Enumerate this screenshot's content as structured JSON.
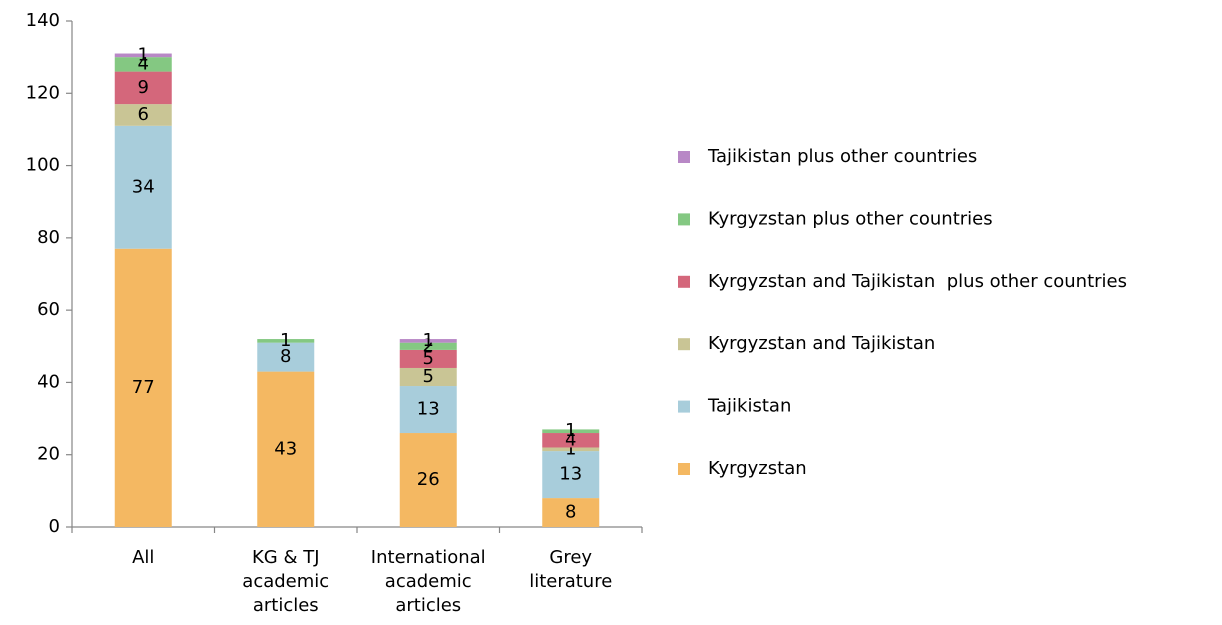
{
  "chart_data": {
    "type": "stacked_bar",
    "categories": [
      [
        "All"
      ],
      [
        "KG & TJ",
        "academic",
        "articles"
      ],
      [
        "International",
        "academic",
        "articles"
      ],
      [
        "Grey",
        "literature"
      ]
    ],
    "series": [
      {
        "name": "Kyrgyzstan",
        "color": "#f4b862",
        "values": [
          77,
          43,
          26,
          8
        ]
      },
      {
        "name": "Tajikistan",
        "color": "#a8cddb",
        "values": [
          34,
          8,
          13,
          13
        ]
      },
      {
        "name": "Kyrgyzstan and Tajikistan",
        "color": "#c9c595",
        "values": [
          6,
          0,
          5,
          1
        ]
      },
      {
        "name": "Kyrgyzstan and Tajikistan  plus other countries",
        "color": "#d4677b",
        "values": [
          9,
          0,
          5,
          4
        ]
      },
      {
        "name": "Kyrgyzstan plus other countries",
        "color": "#84c882",
        "values": [
          4,
          1,
          2,
          1
        ]
      },
      {
        "name": "Tajikistan plus other countries",
        "color": "#b888c6",
        "values": [
          1,
          0,
          1,
          0
        ]
      }
    ],
    "ylim": [
      0,
      140
    ],
    "yticks": [
      0,
      20,
      40,
      60,
      80,
      100,
      120,
      140
    ],
    "legend": "right"
  }
}
